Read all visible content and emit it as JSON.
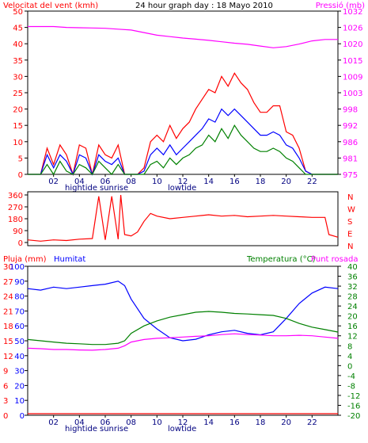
{
  "chart_data": [
    {
      "type": "line",
      "title": "24 hour graph day : 18 Mayo 2010",
      "left_label": "Velocitat del vent (kmh)",
      "right_label": "Pressió (mb)",
      "x_ticks": [
        "02",
        "04",
        "06",
        "08",
        "10",
        "12",
        "14",
        "16",
        "18",
        "20",
        "22"
      ],
      "x_annotations": [
        "hightide",
        "sunrise",
        "lowtide"
      ],
      "y_left_ticks": [
        "0",
        "5",
        "10",
        "15",
        "20",
        "25",
        "30",
        "35",
        "40",
        "45",
        "50"
      ],
      "y_left_range": [
        0,
        50
      ],
      "y_right_ticks": [
        "975",
        "981",
        "986",
        "992",
        "998",
        "1003",
        "1009",
        "1015",
        "1020",
        "1026",
        "1032"
      ],
      "y_right_range": [
        975,
        1032
      ],
      "series": [
        {
          "color": "#ff00ff",
          "axis": "right",
          "x": [
            0,
            1,
            2,
            3,
            4,
            5,
            6,
            7,
            8,
            9,
            10,
            11,
            12,
            13,
            14,
            15,
            16,
            17,
            18,
            19,
            20,
            21,
            22,
            23,
            24
          ],
          "values": [
            1026.6,
            1026.6,
            1026.6,
            1026.3,
            1026.2,
            1026.1,
            1026.0,
            1025.7,
            1025.4,
            1024.5,
            1023.6,
            1023.1,
            1022.6,
            1022.2,
            1021.8,
            1021.3,
            1020.8,
            1020.4,
            1019.8,
            1019.2,
            1019.6,
            1020.5,
            1021.6,
            1022.1,
            1022.1
          ]
        },
        {
          "color": "#ff0000",
          "axis": "left",
          "x": [
            0,
            1,
            1.5,
            2,
            2.5,
            3,
            3.5,
            4,
            4.5,
            5,
            5.5,
            6,
            6.5,
            7,
            7.5,
            8,
            8.5,
            9,
            9.5,
            10,
            10.5,
            11,
            11.5,
            12,
            12.5,
            13,
            13.5,
            14,
            14.5,
            15,
            15.5,
            16,
            16.5,
            17,
            17.5,
            18,
            18.5,
            19,
            19.5,
            20,
            20.5,
            21,
            21.5,
            22,
            23,
            24
          ],
          "values": [
            0,
            0,
            8,
            3,
            9,
            6,
            0,
            9,
            8,
            0,
            9,
            6,
            5,
            9,
            0,
            0,
            0,
            2,
            10,
            12,
            10,
            15,
            11,
            14,
            16,
            20,
            23,
            26,
            25,
            30,
            27,
            31,
            28,
            26,
            22,
            19,
            19,
            21,
            21,
            13,
            12,
            8,
            1,
            0,
            0,
            0
          ]
        },
        {
          "color": "#0000ff",
          "axis": "left",
          "x": [
            0,
            1,
            1.5,
            2,
            2.5,
            3,
            3.5,
            4,
            4.5,
            5,
            5.5,
            6,
            6.5,
            7,
            7.5,
            8,
            8.5,
            9,
            9.5,
            10,
            10.5,
            11,
            11.5,
            12,
            12.5,
            13,
            13.5,
            14,
            14.5,
            15,
            15.5,
            16,
            16.5,
            17,
            17.5,
            18,
            18.5,
            19,
            19.5,
            20,
            20.5,
            21,
            21.5,
            22,
            23,
            24
          ],
          "values": [
            0,
            0,
            6,
            2,
            6,
            4,
            0,
            6,
            5,
            0,
            6,
            4,
            3,
            5,
            0,
            0,
            0,
            1,
            6,
            8,
            6,
            9,
            6,
            8,
            10,
            12,
            14,
            17,
            16,
            20,
            18,
            20,
            18,
            16,
            14,
            12,
            12,
            13,
            12,
            9,
            8,
            5,
            1,
            0,
            0,
            0
          ]
        },
        {
          "color": "#008000",
          "axis": "left",
          "x": [
            0,
            1,
            1.5,
            2,
            2.5,
            3,
            3.5,
            4,
            4.5,
            5,
            5.5,
            6,
            6.5,
            7,
            7.5,
            8,
            8.5,
            9,
            9.5,
            10,
            10.5,
            11,
            11.5,
            12,
            12.5,
            13,
            13.5,
            14,
            14.5,
            15,
            15.5,
            16,
            16.5,
            17,
            17.5,
            18,
            18.5,
            19,
            19.5,
            20,
            20.5,
            21,
            21.5,
            22,
            23,
            24
          ],
          "values": [
            0,
            0,
            3,
            0,
            4,
            1,
            0,
            3,
            2,
            0,
            4,
            2,
            0,
            3,
            0,
            0,
            0,
            0,
            3,
            4,
            2,
            5,
            3,
            5,
            6,
            8,
            9,
            12,
            10,
            14,
            11,
            15,
            12,
            10,
            8,
            7,
            7,
            8,
            7,
            5,
            4,
            2,
            0,
            0,
            0,
            0
          ]
        }
      ]
    },
    {
      "type": "line",
      "y_right_labels": [
        "N",
        "W",
        "S",
        "E",
        "N"
      ],
      "y_left_ticks": [
        "0",
        "90",
        "180",
        "270",
        "360"
      ],
      "y_range": [
        0,
        360
      ],
      "series": [
        {
          "color": "#ff0000",
          "x": [
            0,
            1,
            2,
            3,
            4,
            5,
            5.5,
            6,
            6.5,
            7,
            7.2,
            7.5,
            8,
            8.5,
            9,
            9.5,
            10,
            11,
            12,
            13,
            14,
            15,
            16,
            17,
            18,
            19,
            20,
            21,
            22,
            23,
            23.3,
            24
          ],
          "values": [
            20,
            10,
            20,
            15,
            25,
            30,
            350,
            20,
            350,
            25,
            360,
            60,
            50,
            80,
            160,
            220,
            200,
            180,
            190,
            200,
            210,
            200,
            205,
            195,
            200,
            205,
            200,
            195,
            190,
            190,
            60,
            40
          ]
        }
      ]
    },
    {
      "type": "line",
      "left_labels": [
        "Pluja (mm)",
        "Humitat"
      ],
      "right_labels": [
        "Temperatura (°C)",
        "Punt rosada"
      ],
      "x_ticks": [
        "02",
        "04",
        "06",
        "08",
        "10",
        "12",
        "14",
        "16",
        "18",
        "20",
        "22"
      ],
      "x_annotations": [
        "hightide",
        "sunrise",
        "lowtide"
      ],
      "y_left1_ticks": [
        "0",
        "3",
        "6",
        "9",
        "12",
        "15",
        "18",
        "21",
        "24",
        "27",
        "30"
      ],
      "y_left2_ticks": [
        "0",
        "10",
        "20",
        "30",
        "40",
        "50",
        "60",
        "70",
        "80",
        "90",
        "100"
      ],
      "y_left_range": [
        0,
        100
      ],
      "y_right_ticks": [
        "-20",
        "-16",
        "-12",
        "-8",
        "-4",
        "0",
        "4",
        "8",
        "12",
        "16",
        "20",
        "24",
        "28",
        "32",
        "36",
        "40"
      ],
      "y_right_range": [
        -20,
        40
      ],
      "series": [
        {
          "color": "#0000ff",
          "axis": "left",
          "x": [
            0,
            1,
            2,
            3,
            4,
            5,
            6,
            7,
            7.5,
            8,
            9,
            10,
            11,
            12,
            13,
            14,
            15,
            16,
            17,
            18,
            19,
            20,
            21,
            22,
            23,
            24
          ],
          "values": [
            85,
            84,
            86,
            85,
            86,
            87,
            88,
            90,
            87,
            78,
            65,
            58,
            52,
            50,
            51,
            54,
            56,
            57,
            55,
            54,
            56,
            65,
            75,
            82,
            86,
            85
          ]
        },
        {
          "color": "#008000",
          "axis": "right",
          "x": [
            0,
            1,
            2,
            3,
            4,
            5,
            6,
            7,
            7.5,
            8,
            9,
            10,
            11,
            12,
            13,
            14,
            15,
            16,
            17,
            18,
            19,
            20,
            21,
            22,
            23,
            24
          ],
          "values": [
            10.5,
            10.0,
            9.5,
            9.0,
            8.8,
            8.5,
            8.5,
            9.0,
            10,
            13,
            16,
            18,
            19.5,
            20.5,
            21.5,
            21.8,
            21.5,
            21.0,
            20.8,
            20.5,
            20.2,
            19,
            17,
            15.5,
            14.5,
            13.5
          ]
        },
        {
          "color": "#ff00ff",
          "axis": "right",
          "x": [
            0,
            1,
            2,
            3,
            4,
            5,
            6,
            7,
            7.5,
            8,
            9,
            10,
            11,
            12,
            13,
            14,
            15,
            16,
            17,
            18,
            19,
            20,
            21,
            22,
            23,
            24
          ],
          "values": [
            7.0,
            6.8,
            6.5,
            6.5,
            6.3,
            6.2,
            6.5,
            7,
            8,
            9.5,
            10.5,
            11,
            11.2,
            11.5,
            11.8,
            12.0,
            12.5,
            12.8,
            12.5,
            12.3,
            12.0,
            12.0,
            12.2,
            12.0,
            11.5,
            11.0
          ]
        },
        {
          "color": "#ff0000",
          "axis": "left",
          "x": [
            0,
            24
          ],
          "values": [
            0,
            0
          ]
        }
      ]
    }
  ]
}
